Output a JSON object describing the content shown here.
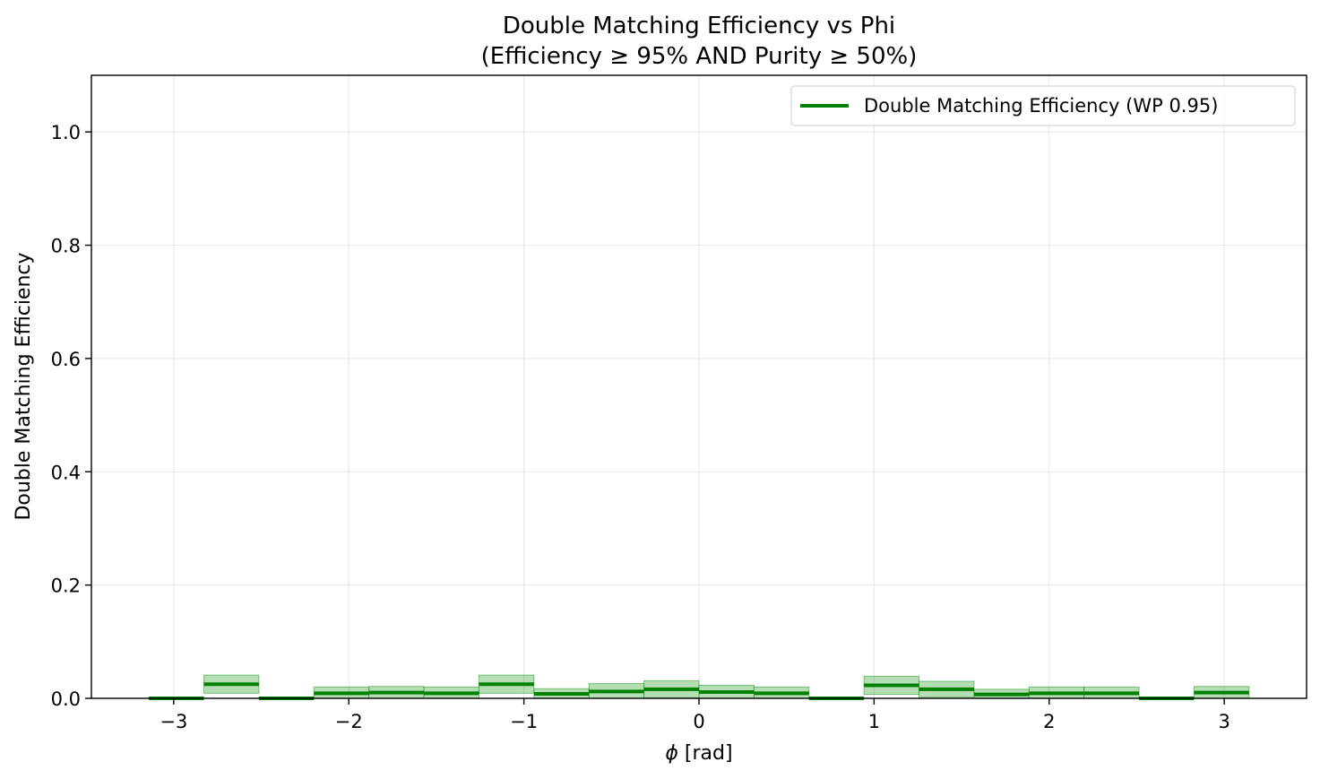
{
  "chart_data": {
    "type": "step",
    "title": "Double Matching Efficiency vs Phi",
    "subtitle": "(Efficiency ≥ 95% AND Purity ≥ 50%)",
    "xlabel_symbol": "ϕ",
    "xlabel_unit": " [rad]",
    "ylabel": "Double Matching Efficiency",
    "xlim": [
      -3.47,
      3.47
    ],
    "ylim": [
      0.0,
      1.1
    ],
    "xticks": [
      -3,
      -2,
      -1,
      0,
      1,
      2,
      3
    ],
    "xtick_labels": [
      "−3",
      "−2",
      "−1",
      "0",
      "1",
      "2",
      "3"
    ],
    "yticks": [
      0.0,
      0.2,
      0.4,
      0.6,
      0.8,
      1.0
    ],
    "ytick_labels": [
      "0.0",
      "0.2",
      "0.4",
      "0.6",
      "0.8",
      "1.0"
    ],
    "grid": true,
    "legend_position": "top-right",
    "series": [
      {
        "name": "Double Matching Efficiency (WP 0.95)",
        "color": "#008000",
        "band_color": "#2ca02c",
        "bin_edges": [
          -3.1416,
          -2.8274,
          -2.5133,
          -2.1991,
          -1.885,
          -1.5708,
          -1.2566,
          -0.9425,
          -0.6283,
          -0.3142,
          0.0,
          0.3142,
          0.6283,
          0.9425,
          1.2566,
          1.5708,
          1.885,
          2.1991,
          2.5133,
          2.8274,
          3.1416
        ],
        "values": [
          0.0,
          0.025,
          0.0,
          0.009,
          0.01,
          0.009,
          0.025,
          0.008,
          0.012,
          0.016,
          0.011,
          0.009,
          0.0,
          0.023,
          0.016,
          0.007,
          0.009,
          0.009,
          0.0,
          0.01
        ],
        "errors": [
          0.0,
          0.016,
          0.0,
          0.011,
          0.011,
          0.011,
          0.016,
          0.009,
          0.014,
          0.015,
          0.012,
          0.011,
          0.0,
          0.016,
          0.014,
          0.009,
          0.011,
          0.011,
          0.0,
          0.011
        ]
      }
    ]
  }
}
